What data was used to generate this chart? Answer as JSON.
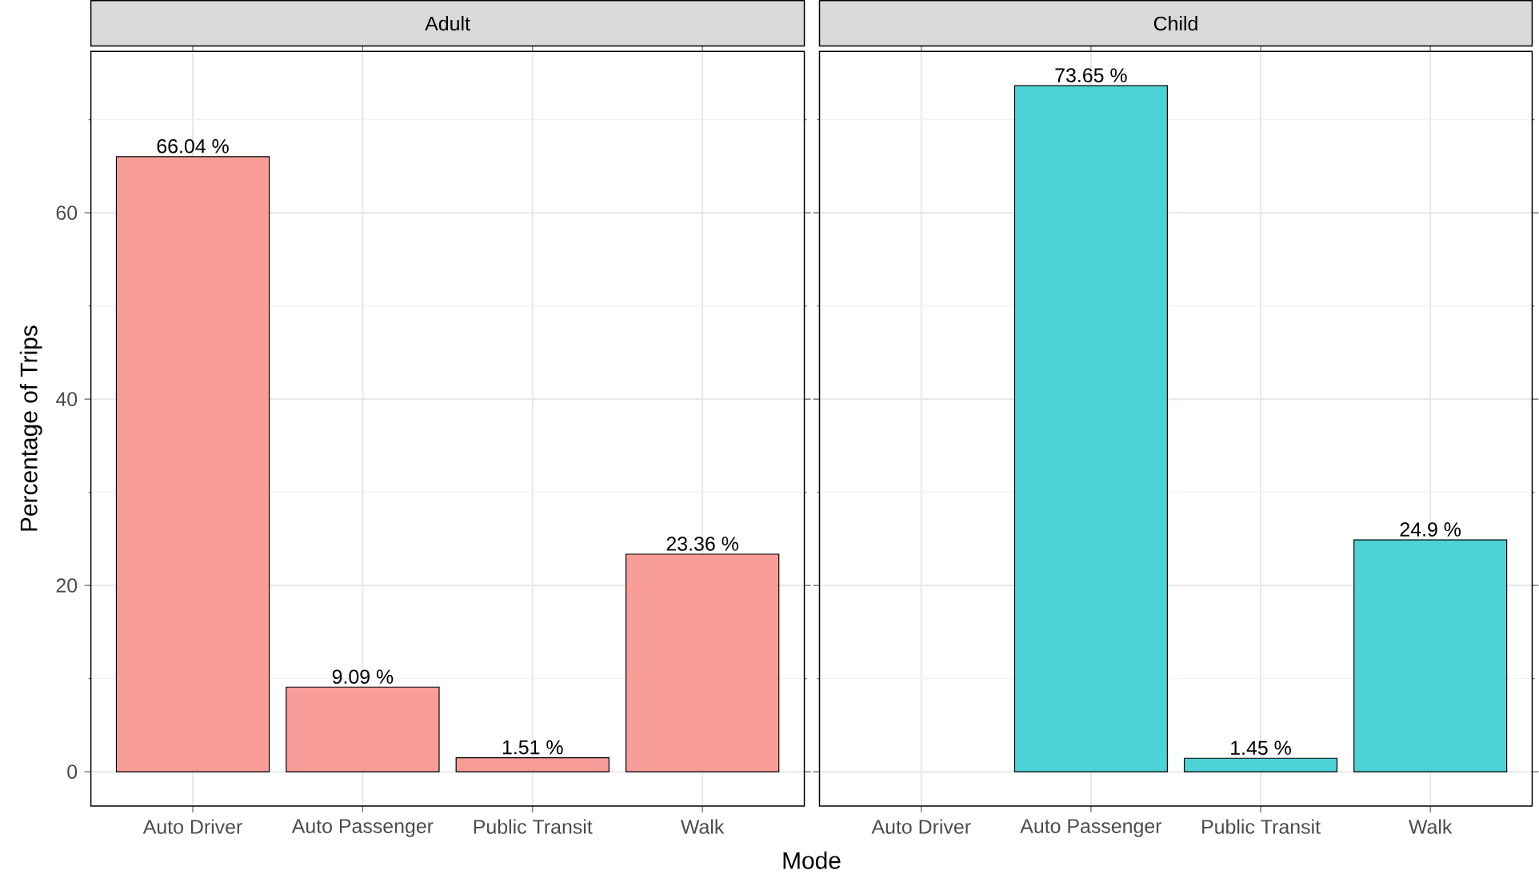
{
  "chart_data": [
    {
      "type": "bar",
      "title": "Adult",
      "xlabel": "Mode",
      "ylabel": "Percentage of Trips",
      "categories": [
        "Auto Driver",
        "Auto Passenger",
        "Public Transit",
        "Walk"
      ],
      "values": [
        66.04,
        9.09,
        1.51,
        23.36
      ],
      "value_labels": [
        "66.04 %",
        "9.09 %",
        "1.51 %",
        "23.36 %"
      ],
      "color": "#f99d98",
      "ylim": [
        -3.68,
        77.33
      ],
      "yticks": [
        0,
        20,
        40,
        60
      ],
      "grid": true
    },
    {
      "type": "bar",
      "title": "Child",
      "categories": [
        "Auto Driver",
        "Auto Passenger",
        "Public Transit",
        "Walk"
      ],
      "values": [
        null,
        73.65,
        1.45,
        24.9
      ],
      "value_labels": [
        null,
        "73.65 %",
        "1.45 %",
        "24.9 %"
      ],
      "color": "#4dd2d6",
      "ylim": [
        -3.68,
        77.33
      ],
      "yticks": [
        0,
        20,
        40,
        60
      ],
      "grid": true,
      "tick_labels": "x"
    }
  ]
}
